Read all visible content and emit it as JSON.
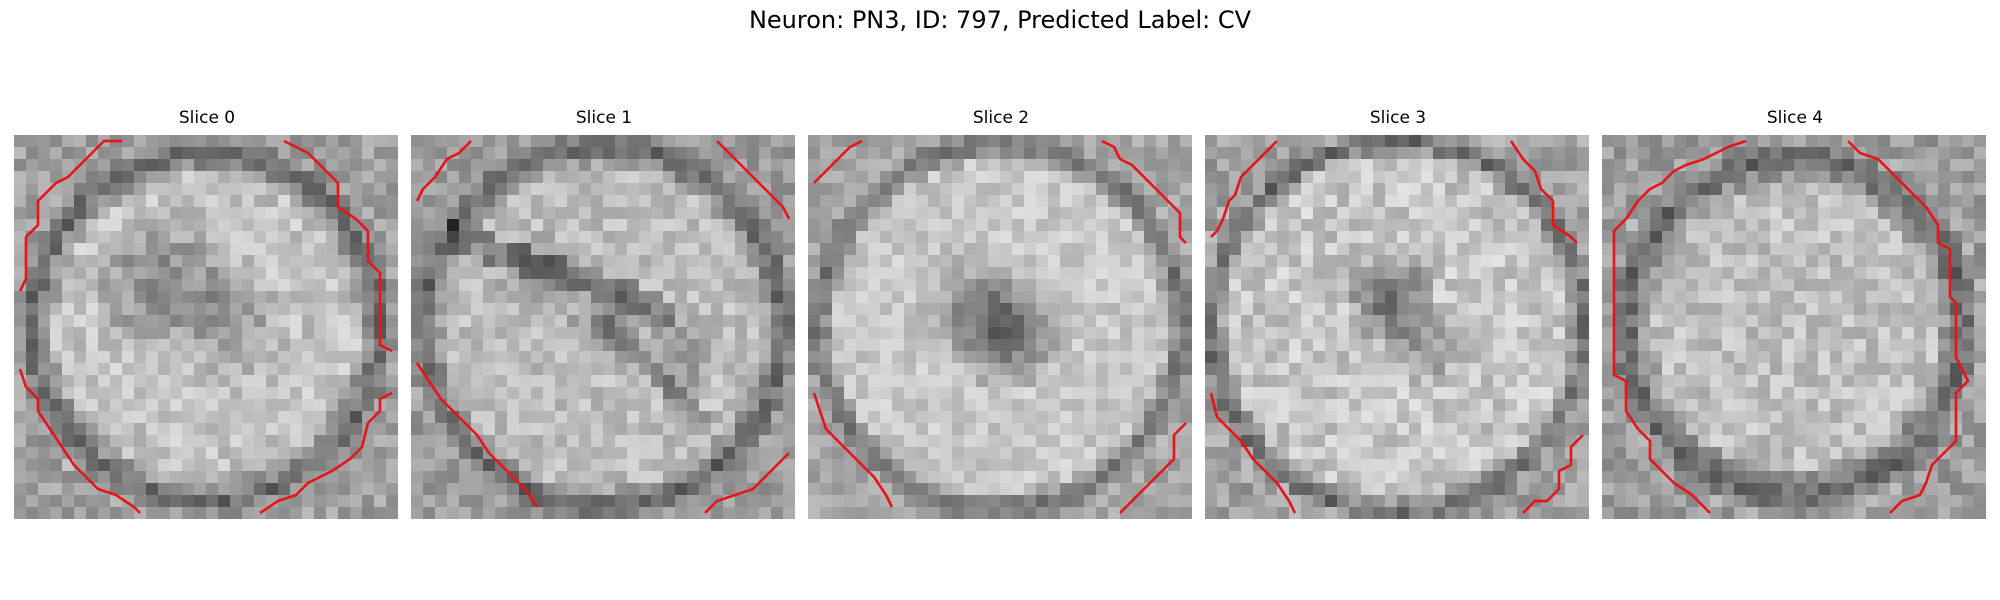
{
  "figure": {
    "title": "Neuron: PN3, ID: 797, Predicted Label: CV"
  },
  "slices": [
    {
      "title": "Slice 0"
    },
    {
      "title": "Slice 1"
    },
    {
      "title": "Slice 2"
    },
    {
      "title": "Slice 3"
    },
    {
      "title": "Slice 4"
    }
  ],
  "colors": {
    "contour": "#e8141a",
    "background": "#ffffff"
  }
}
